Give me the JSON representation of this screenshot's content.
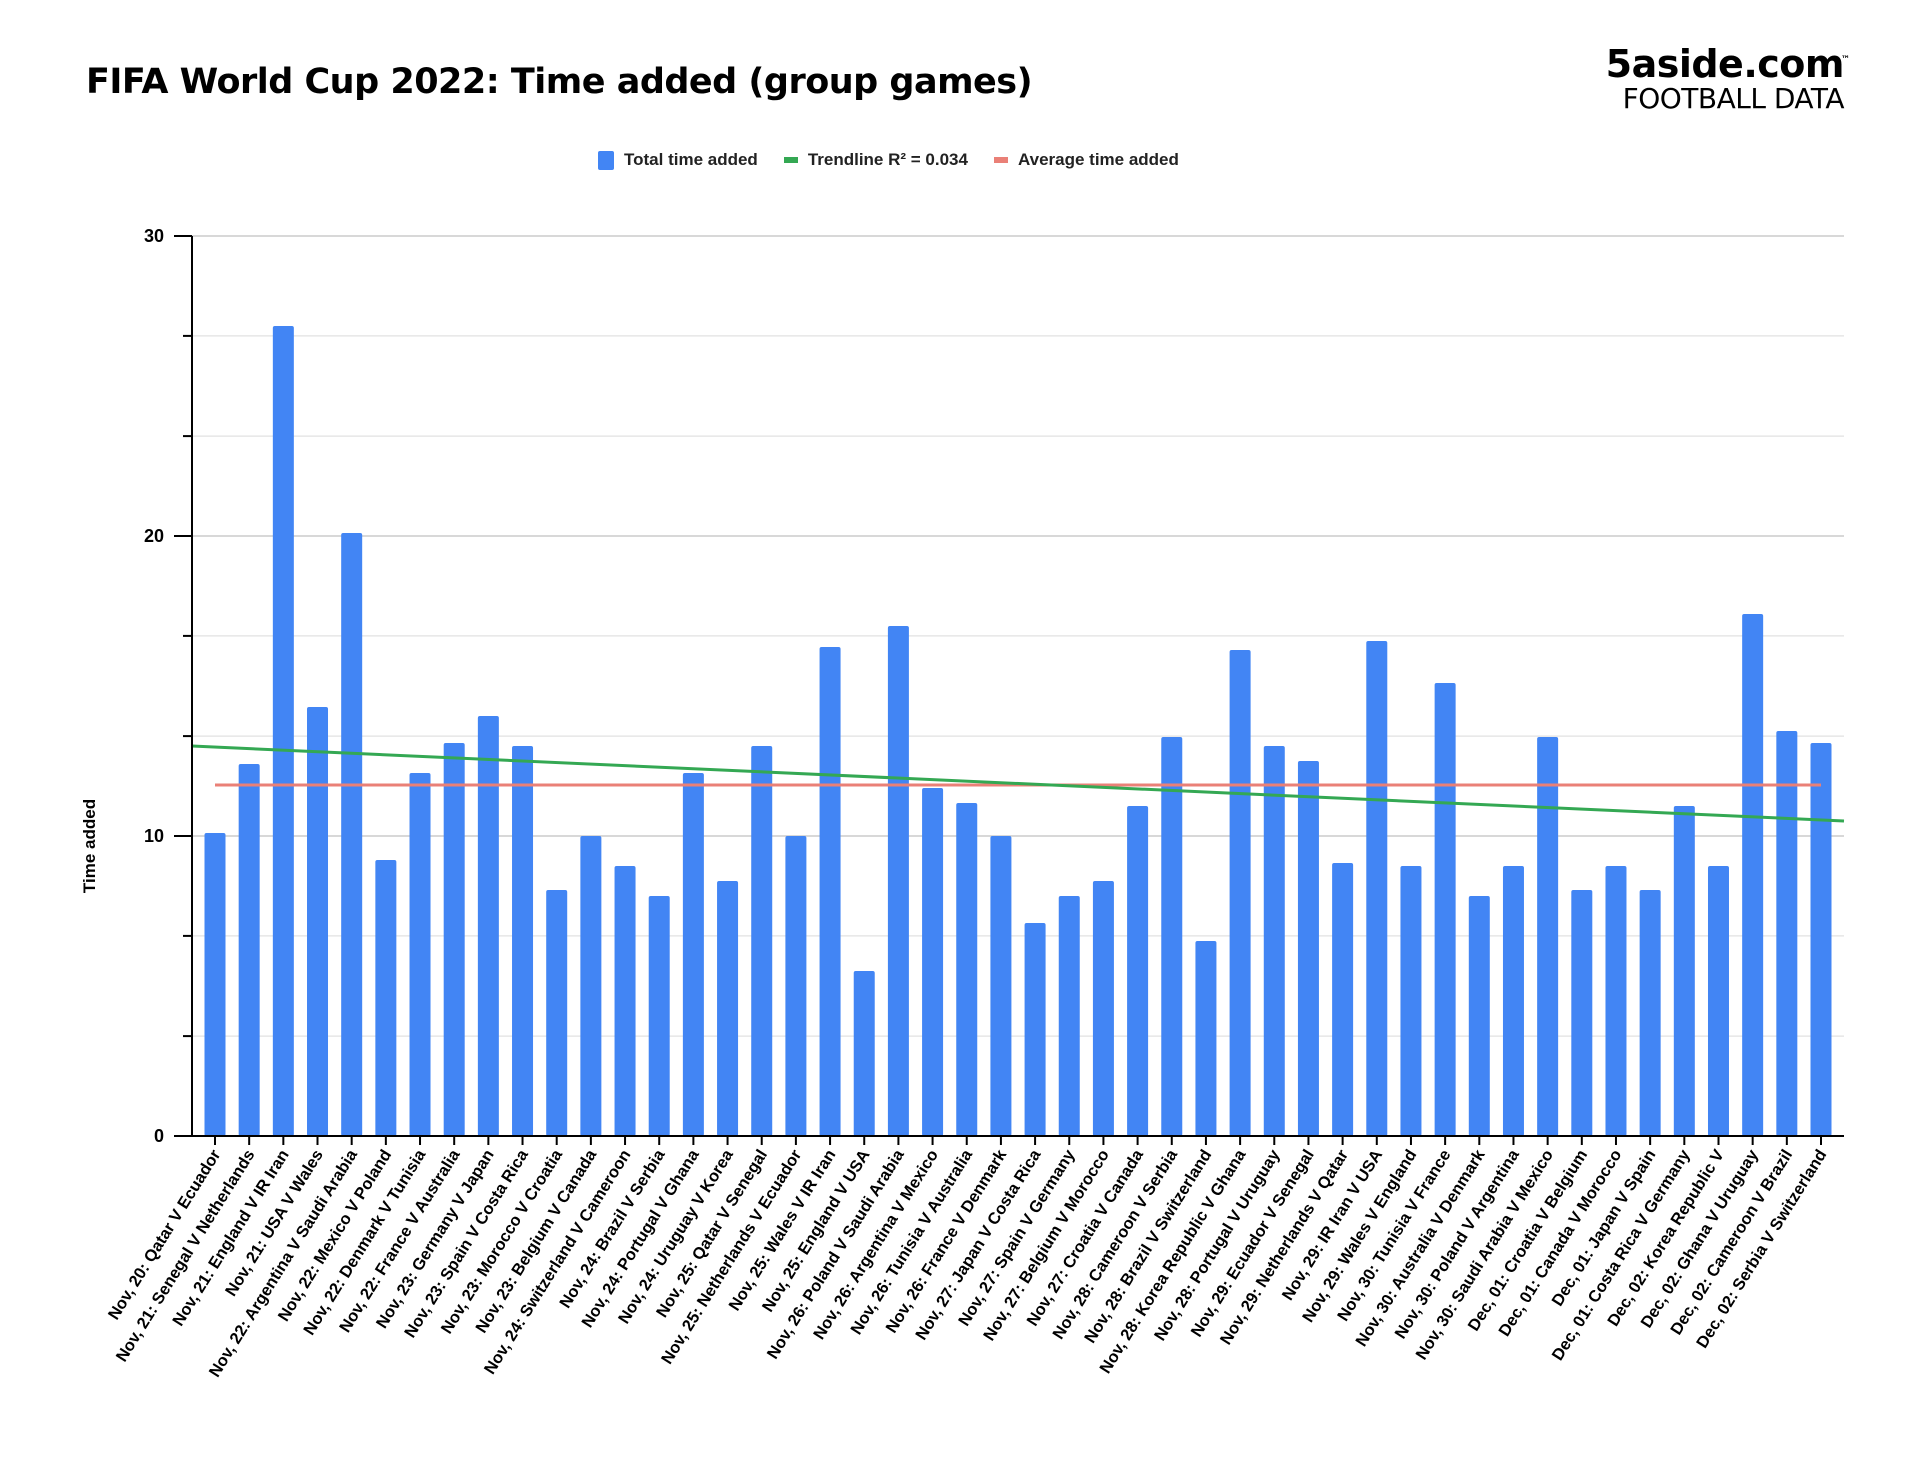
{
  "header": {
    "title": "FIFA World Cup 2022: Time added (group games)",
    "logo_main": "5aside.com",
    "logo_tm": "™",
    "logo_sub": "FOOTBALL DATA"
  },
  "legend": [
    {
      "label": "Total time added",
      "type": "bar",
      "color": "#4285f4"
    },
    {
      "label": "Trendline R² = 0.034",
      "type": "line",
      "color": "#34a853"
    },
    {
      "label": "Average time added",
      "type": "line",
      "color": "#ea8077"
    }
  ],
  "colors": {
    "bar": "#4285f4",
    "trendline": "#34a853",
    "average": "#ea8077",
    "grid_major": "#cccccc",
    "grid_minor": "#e6e6e6",
    "axis": "#000000"
  },
  "chart_data": {
    "type": "bar",
    "title": "FIFA World Cup 2022: Time added (group games)",
    "xlabel": "",
    "ylabel": "Time added",
    "ylim": [
      0,
      30
    ],
    "yticks": [
      0,
      10,
      20,
      30
    ],
    "grid": true,
    "minor_gridlines": [
      3.33,
      6.67,
      13.33,
      16.67,
      23.33,
      26.67
    ],
    "legend_position": "top",
    "categories": [
      "Nov, 20: Qatar V Ecuador",
      "Nov, 21: Senegal V Netherlands",
      "Nov, 21: England V IR Iran",
      "Nov, 21: USA V Wales",
      "Nov, 22: Argentina V Saudi Arabia",
      "Nov, 22: Mexico V Poland",
      "Nov, 22: Denmark V Tunisia",
      "Nov, 22: France V Australia",
      "Nov, 23: Germany V Japan",
      "Nov, 23: Spain V Costa Rica",
      "Nov, 23: Morocco V Croatia",
      "Nov, 23: Belgium V Canada",
      "Nov, 24: Switzerland V Cameroon",
      "Nov, 24: Brazil V Serbia",
      "Nov, 24: Portugal V Ghana",
      "Nov, 24: Uruguay V Korea",
      "Nov, 25: Qatar V Senegal",
      "Nov, 25: Netherlands V Ecuador",
      "Nov, 25: Wales V IR Iran",
      "Nov, 25: England V USA",
      "Nov, 26: Poland V Saudi Arabia",
      "Nov, 26: Argentina V Mexico",
      "Nov, 26: Tunisia V Australia",
      "Nov, 26: France V Denmark",
      "Nov, 27: Japan V Costa Rica",
      "Nov, 27: Spain V Germany",
      "Nov, 27: Belgium V Morocco",
      "Nov, 27: Croatia V Canada",
      "Nov, 28: Cameroon V Serbia",
      "Nov, 28: Brazil V Switzerland",
      "Nov, 28: Korea Republic V Ghana",
      "Nov, 28: Portugal V Uruguay",
      "Nov, 29: Ecuador V Senegal",
      "Nov, 29: Netherlands V Qatar",
      "Nov, 29: IR Iran V USA",
      "Nov, 29: Wales V England",
      "Nov, 30: Tunisia V France",
      "Nov, 30: Australia V Denmark",
      "Nov, 30: Poland V Argentina",
      "Nov, 30: Saudi Arabia V Mexico",
      "Dec, 01: Croatia V Belgium",
      "Dec, 01: Canada V Morocco",
      "Dec, 01: Japan V Spain",
      "Dec, 01: Costa Rica V Germany",
      "Dec, 02: Korea Republic V",
      "Dec, 02: Ghana V Uruguay",
      "Dec, 02: Cameroon V Brazil",
      "Dec, 02: Serbia V Switzerland"
    ],
    "series": [
      {
        "name": "Total time added",
        "type": "bar",
        "values": [
          10.1,
          12.4,
          27.0,
          14.3,
          20.1,
          9.2,
          12.1,
          13.1,
          14.0,
          13.0,
          8.2,
          10.0,
          9.0,
          8.0,
          12.1,
          8.5,
          13.0,
          10.0,
          16.3,
          5.5,
          17.0,
          11.6,
          11.1,
          10.0,
          7.1,
          8.0,
          8.5,
          11.0,
          13.3,
          6.5,
          16.2,
          13.0,
          12.5,
          9.1,
          16.5,
          9.0,
          15.1,
          8.0,
          9.0,
          13.3,
          8.2,
          9.0,
          8.2,
          11.0,
          9.0,
          17.4,
          13.5,
          13.1
        ]
      },
      {
        "name": "Trendline R² = 0.034",
        "type": "line",
        "start": 13.0,
        "end": 10.5,
        "r_squared": 0.034
      },
      {
        "name": "Average time added",
        "type": "line",
        "value": 11.7
      }
    ]
  }
}
